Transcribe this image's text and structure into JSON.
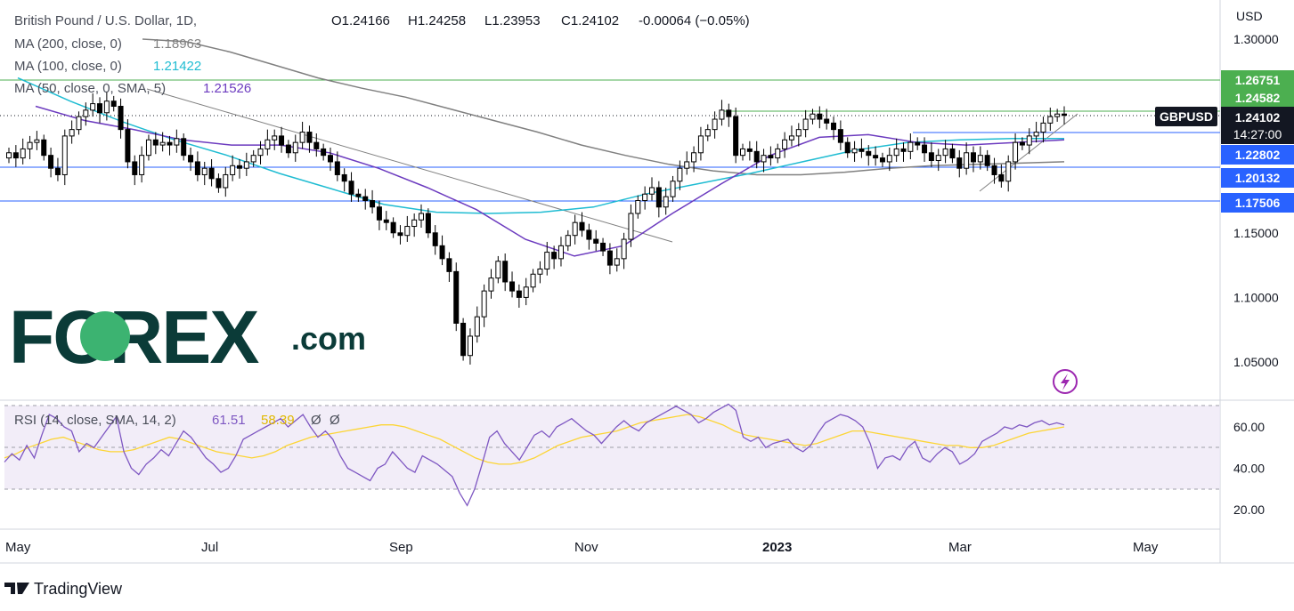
{
  "header": {
    "symbol_title": "British Pound / U.S. Dollar, 1D,",
    "ohlc": [
      {
        "label": "O",
        "value": "1.24166"
      },
      {
        "label": "H",
        "value": "1.24258"
      },
      {
        "label": "L",
        "value": "1.23953"
      },
      {
        "label": "C",
        "value": "1.24102"
      }
    ],
    "change": "-0.00064 (−0.05%)"
  },
  "indicators": [
    {
      "label": "MA (200, close, 0)",
      "value": "1.18963",
      "color": "#808080"
    },
    {
      "label": "MA (100, close, 0)",
      "value": "1.21422",
      "color": "#1fbcd2"
    },
    {
      "label": "MA (50, close, 0, SMA, 5)",
      "value": "1.21526",
      "color": "#6c3bbf"
    }
  ],
  "axis": {
    "currency": "USD",
    "price_ticks": [
      "1.30000",
      "1.15000",
      "1.10000",
      "1.05000"
    ],
    "time_ticks": [
      "May",
      "Jul",
      "Sep",
      "Nov",
      "2023",
      "Mar",
      "May"
    ],
    "rsi_ticks": [
      "60.00",
      "40.00",
      "20.00"
    ]
  },
  "price_labels": [
    {
      "text": "1.26751",
      "bg": "#4caf50",
      "fg": "#ffffff"
    },
    {
      "text": "1.24582",
      "bg": "#4caf50",
      "fg": "#ffffff"
    },
    {
      "text": "1.22802",
      "bg": "#2962ff",
      "fg": "#ffffff"
    },
    {
      "text": "1.20132",
      "bg": "#2962ff",
      "fg": "#ffffff"
    },
    {
      "text": "1.17506",
      "bg": "#2962ff",
      "fg": "#ffffff"
    }
  ],
  "current_price": {
    "symbol": "GBPUSD",
    "price": "1.24102",
    "countdown": "14:27:00"
  },
  "rsi": {
    "label": "RSI (14, close, SMA, 14, 2)",
    "value": "61.51",
    "sma_value": "58.39",
    "extra1": "Ø",
    "extra2": "Ø",
    "line_color": "#7e57c2",
    "sma_color": "#fcd535"
  },
  "branding": {
    "logo_main": "FOREX",
    "logo_suffix": ".com",
    "footer": "TradingView"
  },
  "colors": {
    "up": "#26a69a",
    "down": "#000000",
    "candle": "#000000",
    "ma200": "#808080",
    "ma100": "#1fbcd2",
    "ma50": "#6c3bbf",
    "resistance": "#4caf50",
    "support": "#2962ff"
  },
  "chart_data": {
    "type": "candlestick",
    "title": "British Pound / U.S. Dollar, 1D,",
    "ylim": [
      1.03,
      1.31
    ],
    "close_series": [
      1.212,
      1.208,
      1.215,
      1.22,
      1.222,
      1.21,
      1.2,
      1.195,
      1.225,
      1.23,
      1.24,
      1.245,
      1.25,
      1.243,
      1.252,
      1.248,
      1.23,
      1.205,
      1.195,
      1.21,
      1.222,
      1.218,
      1.22,
      1.218,
      1.223,
      1.21,
      1.205,
      1.195,
      1.2,
      1.192,
      1.185,
      1.195,
      1.202,
      1.2,
      1.205,
      1.21,
      1.215,
      1.222,
      1.225,
      1.218,
      1.212,
      1.22,
      1.228,
      1.22,
      1.215,
      1.21,
      1.205,
      1.195,
      1.19,
      1.18,
      1.178,
      1.175,
      1.17,
      1.16,
      1.158,
      1.15,
      1.148,
      1.155,
      1.16,
      1.165,
      1.15,
      1.14,
      1.13,
      1.12,
      1.08,
      1.055,
      1.07,
      1.085,
      1.105,
      1.115,
      1.128,
      1.112,
      1.105,
      1.1,
      1.108,
      1.118,
      1.122,
      1.135,
      1.13,
      1.14,
      1.148,
      1.158,
      1.152,
      1.145,
      1.142,
      1.136,
      1.125,
      1.13,
      1.145,
      1.165,
      1.175,
      1.18,
      1.185,
      1.17,
      1.178,
      1.19,
      1.2,
      1.205,
      1.212,
      1.225,
      1.23,
      1.238,
      1.245,
      1.24,
      1.21,
      1.215,
      1.213,
      1.205,
      1.21,
      1.208,
      1.215,
      1.222,
      1.225,
      1.23,
      1.238,
      1.242,
      1.238,
      1.235,
      1.23,
      1.22,
      1.212,
      1.215,
      1.213,
      1.21,
      1.208,
      1.205,
      1.21,
      1.215,
      1.213,
      1.22,
      1.218,
      1.212,
      1.206,
      1.21,
      1.215,
      1.208,
      1.2,
      1.212,
      1.205,
      1.21,
      1.202,
      1.195,
      1.19,
      1.205,
      1.22,
      1.218,
      1.225,
      1.228,
      1.235,
      1.24,
      1.242,
      1.241
    ],
    "ma200": [
      1.3,
      1.298,
      1.29,
      1.28,
      1.27,
      1.262,
      1.255,
      1.246,
      1.237,
      1.228,
      1.218,
      1.21,
      1.203,
      1.198,
      1.195,
      1.195,
      1.197,
      1.2,
      1.202,
      1.203,
      1.204,
      1.205
    ],
    "ma100": [
      1.27,
      1.252,
      1.236,
      1.222,
      1.21,
      1.196,
      1.184,
      1.172,
      1.166,
      1.165,
      1.166,
      1.17,
      1.18,
      1.188,
      1.196,
      1.205,
      1.214,
      1.22,
      1.222,
      1.223,
      1.223
    ],
    "ma50": [
      1.248,
      1.237,
      1.23,
      1.222,
      1.218,
      1.218,
      1.212,
      1.2,
      1.185,
      1.168,
      1.145,
      1.132,
      1.14,
      1.165,
      1.188,
      1.21,
      1.224,
      1.226,
      1.22,
      1.218,
      1.22,
      1.222
    ],
    "rsi": [
      43,
      47,
      44,
      51,
      45,
      56,
      66,
      64,
      60,
      58,
      48,
      52,
      50,
      55,
      60,
      65,
      48,
      40,
      37,
      42,
      45,
      49,
      46,
      52,
      58,
      55,
      50,
      45,
      42,
      38,
      40,
      46,
      54,
      56,
      58,
      60,
      62,
      64,
      60,
      63,
      66,
      60,
      55,
      58,
      54,
      46,
      40,
      38,
      36,
      34,
      40,
      42,
      48,
      44,
      40,
      38,
      46,
      44,
      42,
      39,
      36,
      28,
      22,
      30,
      42,
      55,
      58,
      52,
      48,
      44,
      50,
      56,
      58,
      55,
      60,
      62,
      64,
      61,
      58,
      56,
      52,
      56,
      60,
      63,
      60,
      58,
      62,
      64,
      66,
      68,
      70,
      68,
      66,
      62,
      64,
      67,
      69,
      71,
      68,
      55,
      53,
      55,
      50,
      52,
      53,
      54,
      50,
      48,
      51,
      57,
      62,
      64,
      66,
      65,
      63,
      60,
      52,
      40,
      45,
      46,
      44,
      50,
      53,
      45,
      43,
      47,
      50,
      48,
      42,
      44,
      47,
      53,
      55,
      57,
      60,
      59,
      61,
      60,
      62,
      63,
      61,
      62,
      61
    ],
    "rsi_sma": [
      45,
      47,
      50,
      52,
      54,
      55,
      53,
      51,
      49,
      48,
      48,
      49,
      51,
      53,
      55,
      54,
      52,
      50,
      48,
      47,
      46,
      45,
      46,
      48,
      51,
      53,
      55,
      56,
      57,
      58,
      59,
      60,
      61,
      61,
      60,
      58,
      56,
      54,
      51,
      48,
      45,
      43,
      42,
      42,
      43,
      45,
      48,
      51,
      53,
      55,
      56,
      57,
      58,
      60,
      62,
      63,
      64,
      65,
      66,
      65,
      63,
      61,
      58,
      56,
      55,
      54,
      53,
      52,
      51,
      52,
      54,
      56,
      58,
      58,
      57,
      56,
      55,
      54,
      53,
      52,
      51,
      51,
      50,
      50,
      51,
      53,
      55,
      57,
      58,
      59,
      60
    ],
    "time_labels": [
      "May",
      "Jul",
      "Sep",
      "Nov",
      "2023",
      "Mar",
      "May"
    ]
  }
}
